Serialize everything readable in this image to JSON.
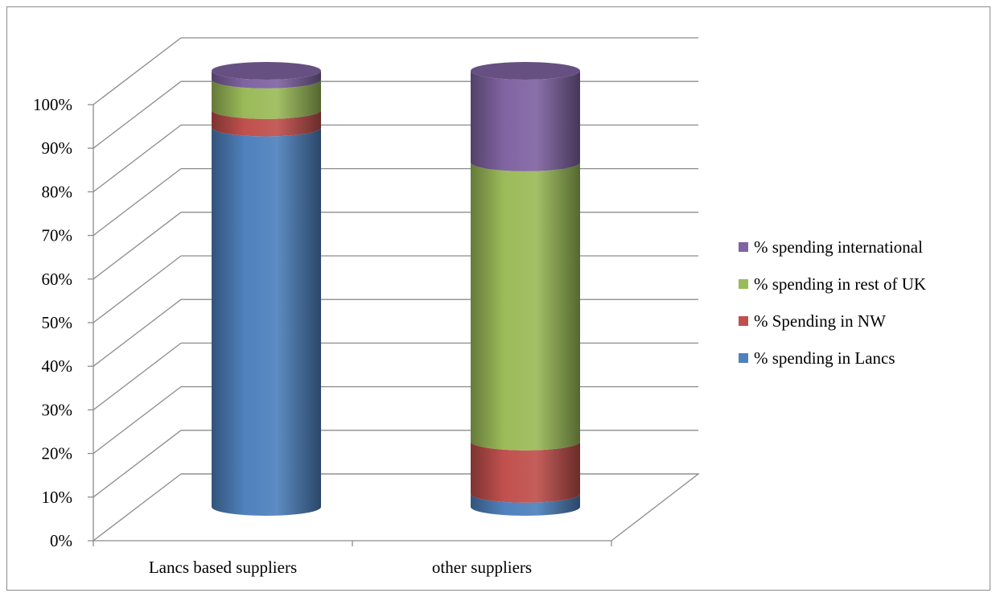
{
  "chart_data": {
    "type": "bar",
    "subtype": "stacked-100-3d-cylinder",
    "categories": [
      "Lancs based suppliers",
      "other suppliers"
    ],
    "series": [
      {
        "name": "% spending in Lancs",
        "color": "#4f81bd",
        "values": [
          87,
          3
        ]
      },
      {
        "name": "% Spending in NW",
        "color": "#c0504d",
        "values": [
          4,
          12
        ]
      },
      {
        "name": "% spending in rest of UK",
        "color": "#9bbb59",
        "values": [
          7,
          64
        ]
      },
      {
        "name": "% spending international",
        "color": "#8064a2",
        "values": [
          2,
          21
        ]
      }
    ],
    "y_ticks": [
      "0%",
      "10%",
      "20%",
      "30%",
      "40%",
      "50%",
      "60%",
      "70%",
      "80%",
      "90%",
      "100%"
    ],
    "ylim": [
      0,
      100
    ],
    "legend_order": [
      3,
      2,
      1,
      0
    ],
    "legend_position": "right",
    "grid": true
  }
}
